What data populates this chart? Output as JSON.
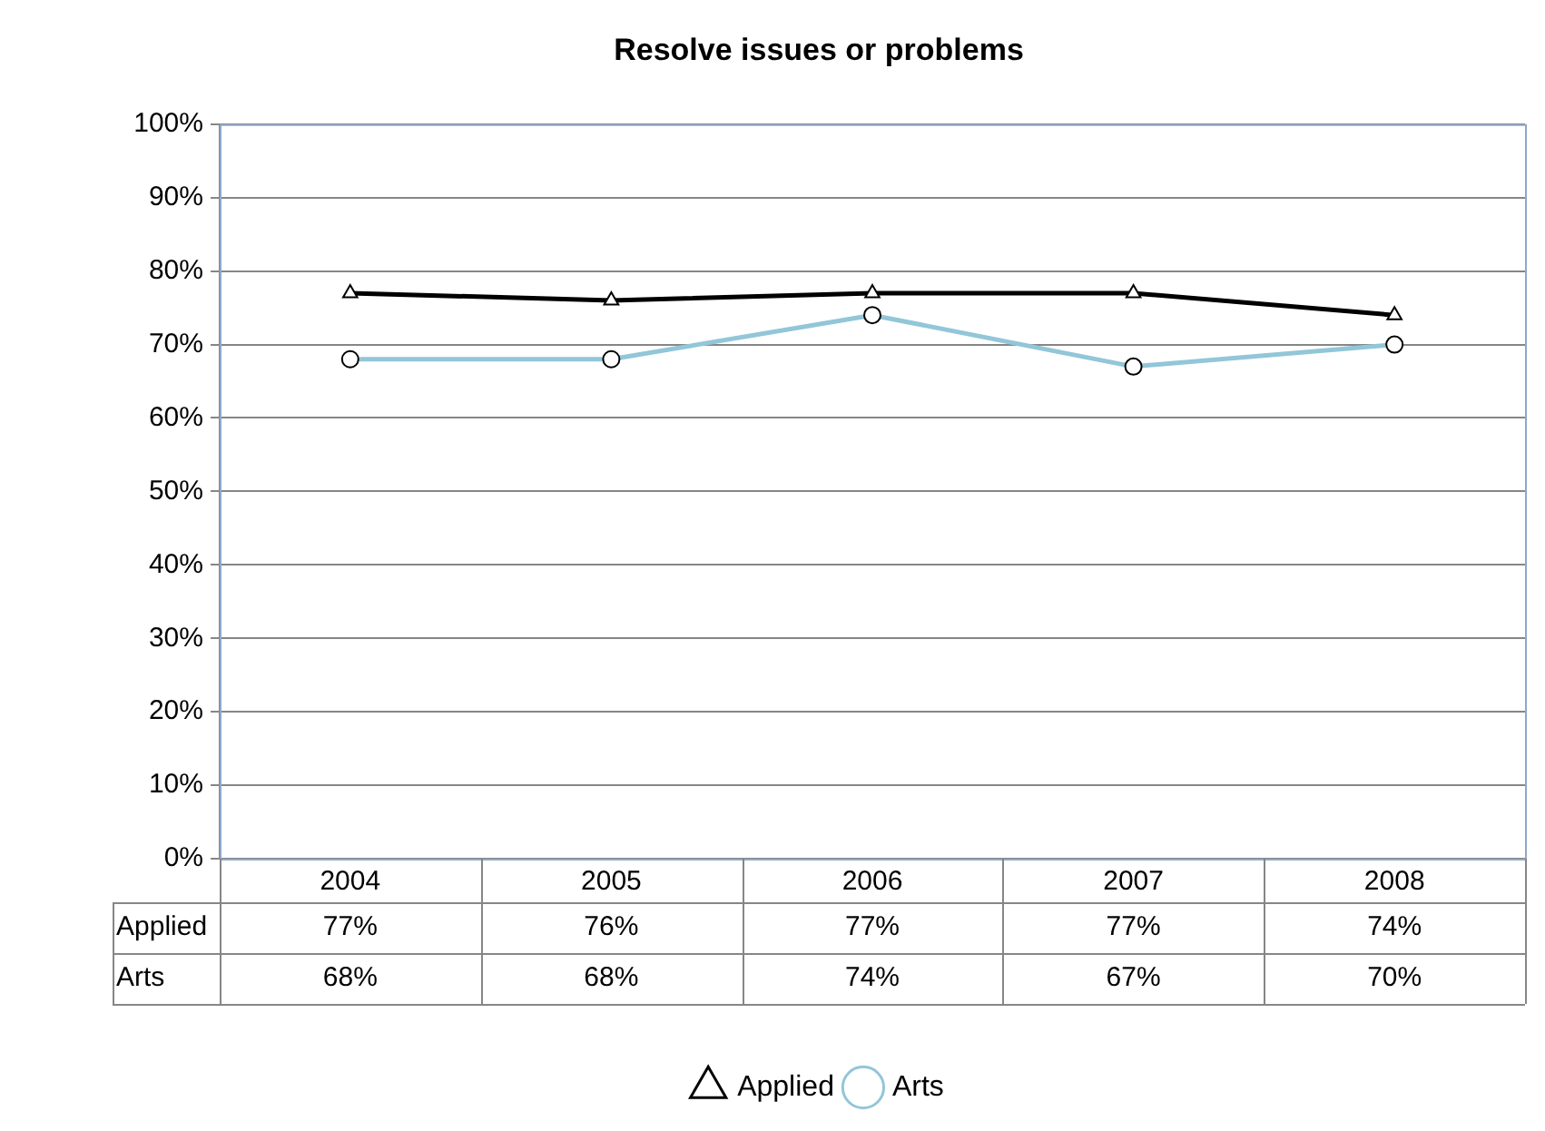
{
  "chart_data": {
    "type": "line",
    "title": "Resolve issues or problems",
    "categories": [
      "2004",
      "2005",
      "2006",
      "2007",
      "2008"
    ],
    "series": [
      {
        "name": "Applied",
        "color": "#000000",
        "marker": "triangle",
        "values": [
          77,
          76,
          77,
          77,
          74
        ],
        "value_labels": [
          "77%",
          "76%",
          "77%",
          "77%",
          "74%"
        ]
      },
      {
        "name": "Arts",
        "color": "#92c6d8",
        "marker": "circle",
        "values": [
          68,
          68,
          74,
          67,
          70
        ],
        "value_labels": [
          "68%",
          "68%",
          "74%",
          "67%",
          "70%"
        ]
      }
    ],
    "ylim": [
      0,
      100
    ],
    "yticks": [
      {
        "value": 0,
        "label": "0%"
      },
      {
        "value": 10,
        "label": "10%"
      },
      {
        "value": 20,
        "label": "20%"
      },
      {
        "value": 30,
        "label": "30%"
      },
      {
        "value": 40,
        "label": "40%"
      },
      {
        "value": 50,
        "label": "50%"
      },
      {
        "value": 60,
        "label": "60%"
      },
      {
        "value": 70,
        "label": "70%"
      },
      {
        "value": 80,
        "label": "80%"
      },
      {
        "value": 90,
        "label": "90%"
      },
      {
        "value": 100,
        "label": "100%"
      }
    ],
    "grid": "y",
    "legend": "bottom",
    "data_labels": true
  }
}
